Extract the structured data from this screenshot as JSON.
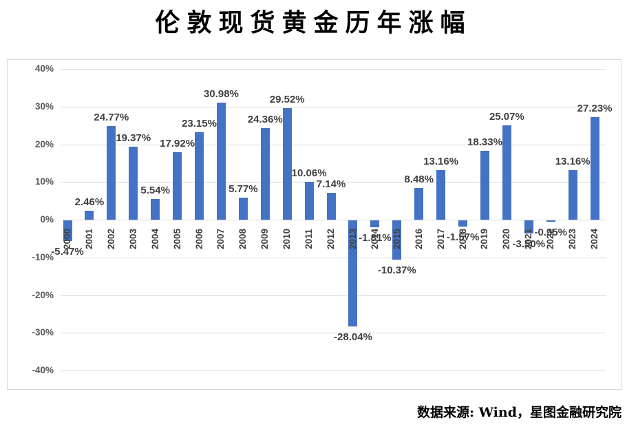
{
  "title": "伦敦现货黄金历年涨幅",
  "source": "数据来源: Wind，星图金融研究院",
  "colors": {
    "bar": "#4472C4",
    "gridline": "#D9D9D9",
    "axis_text": "#595959",
    "label_text": "#404040",
    "title_text": "#000000"
  },
  "chart_data": {
    "type": "bar",
    "title": "伦敦现货黄金历年涨幅",
    "xlabel": "",
    "ylabel": "",
    "categories": [
      "2000",
      "2001",
      "2002",
      "2003",
      "2004",
      "2005",
      "2006",
      "2007",
      "2008",
      "2009",
      "2010",
      "2011",
      "2012",
      "2013",
      "2014",
      "2015",
      "2016",
      "2017",
      "2018",
      "2019",
      "2020",
      "2021",
      "2022",
      "2023",
      "2024"
    ],
    "values": [
      -5.47,
      2.46,
      24.77,
      19.37,
      5.54,
      17.92,
      23.15,
      30.98,
      5.77,
      24.36,
      29.52,
      10.06,
      7.14,
      -28.04,
      -1.81,
      -10.37,
      8.48,
      13.16,
      -1.57,
      18.33,
      25.07,
      -3.5,
      -0.35,
      13.16,
      27.23
    ],
    "labels": [
      "-5.47%",
      "2.46%",
      "24.77%",
      "19.37%",
      "5.54%",
      "17.92%",
      "23.15%",
      "30.98%",
      "5.77%",
      "24.36%",
      "29.52%",
      "10.06%",
      "7.14%",
      "-28.04%",
      "-1.81%",
      "-10.37%",
      "8.48%",
      "13.16%",
      "-1.57%",
      "18.33%",
      "25.07%",
      "-3.50%",
      "-0.35%",
      "13.16%",
      "27.23%"
    ],
    "ylim": [
      -40,
      40
    ],
    "ytick_step": 10,
    "ytick_labels": [
      "40%",
      "30%",
      "20%",
      "10%",
      "0%",
      "-10%",
      "-20%",
      "-30%",
      "-40%"
    ],
    "grid": true,
    "legend": false
  }
}
